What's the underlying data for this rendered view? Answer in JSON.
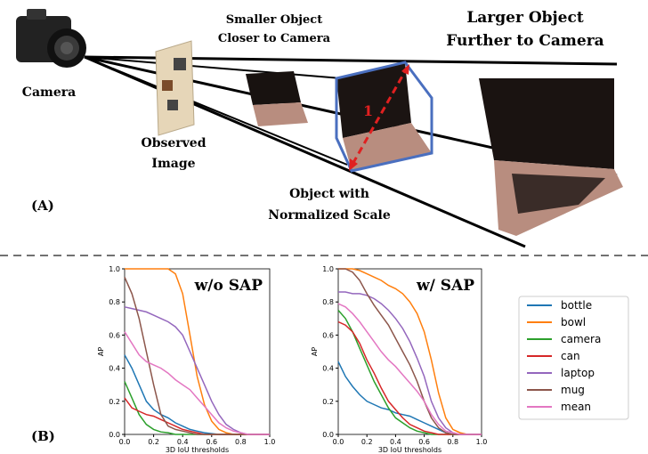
{
  "panel_a": {
    "label": "(A)",
    "camera": "Camera",
    "observed_image": [
      "Observed",
      "Image"
    ],
    "smaller_object": [
      "Smaller Object",
      "Closer to Camera"
    ],
    "larger_object": [
      "Larger Object",
      "Further to Camera"
    ],
    "normalized_object": [
      "Object with",
      "Normalized Scale"
    ],
    "unit_length": "1"
  },
  "panel_b_label": "(B)",
  "chart_data": [
    {
      "type": "line",
      "title": "w/o SAP",
      "x_label": "3D IoU thresholds",
      "y_label": "AP",
      "x": [
        0,
        0.05,
        0.1,
        0.15,
        0.2,
        0.25,
        0.3,
        0.35,
        0.4,
        0.45,
        0.5,
        0.55,
        0.6,
        0.65,
        0.7,
        0.75,
        0.8,
        0.85,
        0.9,
        0.95,
        1.0
      ],
      "xlim": [
        0,
        1
      ],
      "ylim": [
        0,
        1
      ],
      "xticks": [
        {
          "value": 0,
          "label": "0.0"
        },
        {
          "value": 0.2,
          "label": "0.2"
        },
        {
          "value": 0.4,
          "label": "0.4"
        },
        {
          "value": 0.6,
          "label": "0.6"
        },
        {
          "value": 0.8,
          "label": "0.8"
        },
        {
          "value": 1,
          "label": "1.0"
        }
      ],
      "yticks": [
        {
          "value": 0,
          "label": "0.0"
        },
        {
          "value": 0.2,
          "label": "0.2"
        },
        {
          "value": 0.4,
          "label": "0.4"
        },
        {
          "value": 0.6,
          "label": "0.6"
        },
        {
          "value": 0.8,
          "label": "0.8"
        },
        {
          "value": 1,
          "label": "1.0"
        }
      ],
      "series": [
        {
          "color": "#1f77b4",
          "values": [
            0.48,
            0.4,
            0.3,
            0.2,
            0.15,
            0.12,
            0.1,
            0.07,
            0.05,
            0.03,
            0.02,
            0.01,
            0.005,
            0,
            0,
            0,
            0,
            0,
            0,
            0,
            0
          ]
        },
        {
          "color": "#ff7f0e",
          "values": [
            1,
            1,
            1,
            1,
            1,
            1,
            1,
            0.97,
            0.85,
            0.6,
            0.35,
            0.18,
            0.08,
            0.03,
            0.01,
            0,
            0,
            0,
            0,
            0,
            0
          ]
        },
        {
          "color": "#2ca02c",
          "values": [
            0.32,
            0.22,
            0.12,
            0.06,
            0.03,
            0.015,
            0.01,
            0,
            0,
            0,
            0,
            0,
            0,
            0,
            0,
            0,
            0,
            0,
            0,
            0,
            0
          ]
        },
        {
          "color": "#d62728",
          "values": [
            0.22,
            0.16,
            0.14,
            0.12,
            0.11,
            0.09,
            0.07,
            0.05,
            0.03,
            0.02,
            0.01,
            0,
            0,
            0,
            0,
            0,
            0,
            0,
            0,
            0,
            0
          ]
        },
        {
          "color": "#9467bd",
          "values": [
            0.77,
            0.76,
            0.75,
            0.74,
            0.72,
            0.7,
            0.68,
            0.65,
            0.6,
            0.5,
            0.4,
            0.3,
            0.2,
            0.12,
            0.06,
            0.03,
            0.01,
            0,
            0,
            0,
            0
          ]
        },
        {
          "color": "#8c564b",
          "values": [
            0.95,
            0.85,
            0.7,
            0.5,
            0.3,
            0.12,
            0.05,
            0.03,
            0.02,
            0.01,
            0,
            0,
            0,
            0,
            0,
            0,
            0,
            0,
            0,
            0,
            0
          ]
        },
        {
          "color": "#e377c2",
          "values": [
            0.62,
            0.55,
            0.48,
            0.44,
            0.42,
            0.4,
            0.37,
            0.33,
            0.3,
            0.27,
            0.22,
            0.17,
            0.12,
            0.07,
            0.04,
            0.02,
            0.01,
            0,
            0,
            0,
            0
          ]
        }
      ]
    },
    {
      "type": "line",
      "title": "w/ SAP",
      "x_label": "3D IoU thresholds",
      "y_label": "AP",
      "x": [
        0,
        0.05,
        0.1,
        0.15,
        0.2,
        0.25,
        0.3,
        0.35,
        0.4,
        0.45,
        0.5,
        0.55,
        0.6,
        0.65,
        0.7,
        0.75,
        0.8,
        0.85,
        0.9,
        0.95,
        1.0
      ],
      "xlim": [
        0,
        1
      ],
      "ylim": [
        0,
        1
      ],
      "xticks": [
        {
          "value": 0,
          "label": "0.0"
        },
        {
          "value": 0.2,
          "label": "0.2"
        },
        {
          "value": 0.4,
          "label": "0.4"
        },
        {
          "value": 0.6,
          "label": "0.6"
        },
        {
          "value": 0.8,
          "label": "0.8"
        },
        {
          "value": 1,
          "label": "1.0"
        }
      ],
      "yticks": [
        {
          "value": 0,
          "label": "0.0"
        },
        {
          "value": 0.2,
          "label": "0.2"
        },
        {
          "value": 0.4,
          "label": "0.4"
        },
        {
          "value": 0.6,
          "label": "0.6"
        },
        {
          "value": 0.8,
          "label": "0.8"
        },
        {
          "value": 1,
          "label": "1.0"
        }
      ],
      "legend": "right",
      "series": [
        {
          "name": "bottle",
          "color": "#1f77b4",
          "values": [
            0.44,
            0.35,
            0.29,
            0.24,
            0.2,
            0.18,
            0.16,
            0.15,
            0.13,
            0.12,
            0.11,
            0.09,
            0.07,
            0.05,
            0.03,
            0.01,
            0,
            0,
            0,
            0,
            0
          ]
        },
        {
          "name": "bowl",
          "color": "#ff7f0e",
          "values": [
            1,
            1,
            1,
            0.99,
            0.97,
            0.95,
            0.93,
            0.9,
            0.88,
            0.85,
            0.8,
            0.73,
            0.62,
            0.45,
            0.25,
            0.1,
            0.03,
            0.01,
            0,
            0,
            0
          ]
        },
        {
          "name": "camera",
          "color": "#2ca02c",
          "values": [
            0.75,
            0.7,
            0.62,
            0.52,
            0.42,
            0.32,
            0.24,
            0.16,
            0.1,
            0.07,
            0.04,
            0.02,
            0.01,
            0,
            0,
            0,
            0,
            0,
            0,
            0,
            0
          ]
        },
        {
          "name": "can",
          "color": "#d62728",
          "values": [
            0.68,
            0.66,
            0.62,
            0.55,
            0.45,
            0.37,
            0.28,
            0.2,
            0.15,
            0.1,
            0.06,
            0.04,
            0.02,
            0.01,
            0,
            0,
            0,
            0,
            0,
            0,
            0
          ]
        },
        {
          "name": "laptop",
          "color": "#9467bd",
          "values": [
            0.86,
            0.86,
            0.85,
            0.85,
            0.84,
            0.82,
            0.79,
            0.75,
            0.7,
            0.64,
            0.56,
            0.46,
            0.35,
            0.2,
            0.1,
            0.04,
            0.01,
            0,
            0,
            0,
            0
          ]
        },
        {
          "name": "mug",
          "color": "#8c564b",
          "values": [
            1,
            1,
            0.98,
            0.93,
            0.85,
            0.78,
            0.72,
            0.66,
            0.58,
            0.5,
            0.42,
            0.32,
            0.2,
            0.1,
            0.04,
            0.01,
            0,
            0,
            0,
            0,
            0
          ]
        },
        {
          "name": "mean",
          "color": "#e377c2",
          "values": [
            0.79,
            0.77,
            0.73,
            0.68,
            0.62,
            0.56,
            0.5,
            0.45,
            0.41,
            0.36,
            0.31,
            0.26,
            0.2,
            0.12,
            0.06,
            0.02,
            0.01,
            0,
            0,
            0,
            0
          ]
        }
      ]
    }
  ]
}
